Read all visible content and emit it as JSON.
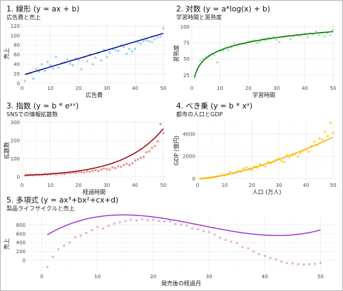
{
  "chart_data": [
    {
      "type": "scatter",
      "title": "1. 線形 (y = ax + b)",
      "subtitle": "広告費と売上",
      "xlabel": "広告費",
      "ylabel": "売上",
      "xlim": [
        0,
        51
      ],
      "ylim": [
        0,
        125
      ],
      "xticks": [
        0,
        10,
        20,
        30,
        40,
        50
      ],
      "yticks": [
        0,
        20,
        40,
        60,
        80,
        100,
        120
      ],
      "point_color": "#87ceeb",
      "line_color": "#00008b",
      "fit": {
        "kind": "linear",
        "a": 1.75,
        "b": 17
      },
      "grid": true,
      "x": [
        1,
        2,
        3,
        4,
        5,
        6,
        7,
        8,
        9,
        10,
        11,
        12,
        13,
        14,
        15,
        16,
        17,
        18,
        19,
        20,
        21,
        22,
        23,
        24,
        25,
        26,
        27,
        28,
        29,
        30,
        31,
        32,
        33,
        34,
        35,
        36,
        37,
        38,
        39,
        40,
        41,
        42,
        43,
        44,
        45,
        46,
        47,
        48,
        49,
        50
      ],
      "y": [
        5,
        20,
        22,
        10,
        30,
        25,
        40,
        26,
        45,
        38,
        31,
        55,
        33,
        42,
        44,
        50,
        41,
        38,
        52,
        49,
        30,
        55,
        46,
        61,
        40,
        54,
        64,
        48,
        70,
        55,
        64,
        72,
        70,
        68,
        80,
        76,
        62,
        72,
        67,
        72,
        85,
        83,
        88,
        90,
        88,
        86,
        92,
        96,
        98,
        115
      ]
    },
    {
      "type": "scatter",
      "title": "2. 対数 (y = a*log(x) + b)",
      "subtitle": "学習時間と習熟度",
      "xlabel": "学習時間",
      "ylabel": "習熟度",
      "xlim": [
        0,
        51
      ],
      "ylim": [
        12,
        105
      ],
      "xticks": [
        0,
        10,
        20,
        30,
        40,
        50
      ],
      "yticks": [
        25,
        50,
        75,
        100
      ],
      "point_color": "#90ee90",
      "line_color": "#006400",
      "fit": {
        "kind": "log",
        "a": 18,
        "b": 22
      },
      "grid": true,
      "x": [
        1,
        2,
        3,
        4,
        5,
        6,
        7,
        8,
        9,
        10,
        11,
        12,
        13,
        14,
        15,
        16,
        17,
        18,
        19,
        20,
        21,
        22,
        23,
        24,
        25,
        26,
        27,
        28,
        29,
        30,
        31,
        32,
        33,
        34,
        35,
        36,
        37,
        38,
        39,
        40,
        41,
        42,
        43,
        44,
        45,
        46,
        47,
        48,
        49,
        50
      ],
      "y": [
        22,
        33,
        47,
        50,
        53,
        56,
        58,
        56,
        45,
        62,
        63,
        68,
        64,
        68,
        74,
        71,
        74,
        74,
        73,
        77,
        78,
        79,
        75,
        77,
        81,
        79,
        83,
        82,
        84,
        80,
        76,
        84,
        85,
        86,
        81,
        85,
        88,
        86,
        87,
        89,
        84,
        90,
        88,
        93,
        87,
        91,
        85,
        90,
        87,
        95
      ]
    },
    {
      "type": "scatter",
      "title": "3. 指数 (y = b * eᵃˣ)",
      "subtitle": "SNSでの情報拡散数",
      "xlabel": "経過時間",
      "ylabel": "拡散数",
      "xlim": [
        0,
        51
      ],
      "ylim": [
        -20,
        310
      ],
      "xticks": [
        0,
        10,
        20,
        30,
        40,
        50
      ],
      "yticks": [
        0,
        100,
        200,
        300
      ],
      "point_color": "#f08080",
      "line_color": "#8b0000",
      "fit": {
        "kind": "exp",
        "a": 0.07,
        "b": 8
      },
      "grid": true,
      "x": [
        1,
        2,
        3,
        4,
        5,
        6,
        7,
        8,
        9,
        10,
        11,
        12,
        13,
        14,
        15,
        16,
        17,
        18,
        19,
        20,
        21,
        22,
        23,
        24,
        25,
        26,
        27,
        28,
        29,
        30,
        31,
        32,
        33,
        34,
        35,
        36,
        37,
        38,
        39,
        40,
        41,
        42,
        43,
        44,
        45,
        46,
        47,
        48,
        49,
        50
      ],
      "y": [
        8,
        9,
        10,
        8,
        12,
        11,
        10,
        14,
        12,
        15,
        17,
        13,
        19,
        18,
        16,
        21,
        20,
        24,
        22,
        28,
        26,
        24,
        30,
        28,
        33,
        36,
        32,
        40,
        46,
        42,
        40,
        52,
        48,
        58,
        55,
        64,
        72,
        65,
        75,
        90,
        95,
        105,
        110,
        135,
        140,
        160,
        170,
        195,
        290,
        240
      ]
    },
    {
      "type": "scatter",
      "title": "4. べき乗 (y = b * xᵃ)",
      "subtitle": "都市の人口とGDP",
      "xlabel": "人口 (万人)",
      "ylabel": "GDP (億円)",
      "xlim": [
        0,
        51
      ],
      "ylim": [
        -150,
        5200
      ],
      "xticks": [
        0,
        10,
        20,
        30,
        40,
        50
      ],
      "yticks": [
        0,
        2000,
        4000
      ],
      "point_color": "#ffd700",
      "line_color": "#ffa500",
      "fit": {
        "kind": "power",
        "a": 1.5,
        "b": 10.5
      },
      "grid": true,
      "x": [
        1,
        2,
        3,
        4,
        5,
        6,
        7,
        8,
        9,
        10,
        11,
        12,
        13,
        14,
        15,
        16,
        17,
        18,
        19,
        20,
        21,
        22,
        23,
        24,
        25,
        26,
        27,
        28,
        29,
        30,
        31,
        32,
        33,
        34,
        35,
        36,
        37,
        38,
        39,
        40,
        41,
        42,
        43,
        44,
        45,
        46,
        47,
        48,
        49,
        50
      ],
      "y": [
        20,
        30,
        60,
        70,
        100,
        150,
        200,
        250,
        300,
        320,
        400,
        600,
        500,
        550,
        700,
        650,
        900,
        1000,
        850,
        800,
        1100,
        1000,
        1300,
        1200,
        1100,
        1500,
        1400,
        1500,
        1700,
        1800,
        1600,
        1500,
        2100,
        1900,
        2100,
        2200,
        2000,
        2300,
        2500,
        2600,
        2400,
        2900,
        3300,
        3000,
        3600,
        3500,
        4200,
        3800,
        5000,
        4100
      ]
    },
    {
      "type": "scatter",
      "title": "5. 多項式 (y = ax³+bx²+cx+d)",
      "subtitle": "製品ライフサイクルと売上",
      "xlabel": "発売後の経過月",
      "ylabel": "売上",
      "xlim": [
        -2.5,
        52.5
      ],
      "ylim": [
        -260,
        1000
      ],
      "xticks": [
        0,
        10,
        20,
        30,
        40,
        50
      ],
      "yticks": [
        0,
        200,
        400,
        600,
        800
      ],
      "point_color": "#dda0dd",
      "line_color": "#9932cc",
      "fit": {
        "kind": "cubic",
        "a": 0.0439,
        "b": -3.75,
        "c": 81.5,
        "d": 500
      },
      "grid": true,
      "x": [
        1,
        2,
        3,
        4,
        5,
        6,
        7,
        8,
        9,
        10,
        11,
        12,
        13,
        14,
        15,
        16,
        17,
        18,
        19,
        20,
        21,
        22,
        23,
        24,
        25,
        26,
        27,
        28,
        29,
        30,
        31,
        32,
        33,
        34,
        35,
        36,
        37,
        38,
        39,
        40,
        41,
        42,
        43,
        44,
        45,
        46,
        47,
        48,
        49,
        50
      ],
      "y": [
        -150,
        80,
        250,
        330,
        400,
        520,
        560,
        620,
        680,
        750,
        720,
        780,
        830,
        860,
        890,
        920,
        900,
        930,
        910,
        920,
        890,
        880,
        880,
        820,
        810,
        790,
        720,
        700,
        660,
        640,
        580,
        510,
        460,
        420,
        390,
        300,
        270,
        200,
        140,
        100,
        50,
        20,
        -30,
        -60,
        -70,
        -90,
        -100,
        -90,
        -80,
        -60
      ]
    }
  ]
}
